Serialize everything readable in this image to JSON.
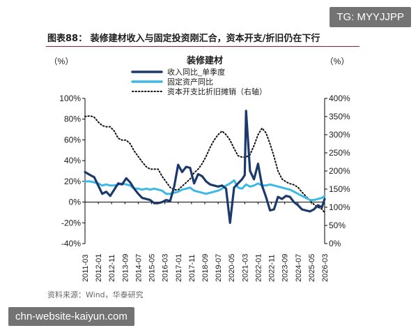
{
  "watermark_top": "TG: MYYJJPP",
  "watermark_bottom": "chn-website-kaiyun.com",
  "figure_title": "图表88： 装修建材收入与固定投资刚汇合，资本开支/折旧仍在下行",
  "source": "资料来源：Wind，华泰研究",
  "chart_data": {
    "type": "line",
    "title": "装修建材",
    "left_unit": "（%）",
    "right_unit": "（%）",
    "ylim_left": [
      -40,
      100
    ],
    "ylim_right": [
      0,
      400
    ],
    "yticks_left": [
      "100%",
      "80%",
      "60%",
      "40%",
      "20%",
      "0%",
      "-20%",
      "-40%"
    ],
    "yticks_right": [
      "400%",
      "350%",
      "300%",
      "250%",
      "200%",
      "150%",
      "100%",
      "50%",
      "0%"
    ],
    "xticks": [
      "2011-03",
      "2012-01",
      "2012-11",
      "2013-09",
      "2014-07",
      "2015-05",
      "2016-03",
      "2017-01",
      "2017-11",
      "2018-09",
      "2019-07",
      "2020-05",
      "2021-03",
      "2022-01",
      "2022-11",
      "2023-09",
      "2024-07",
      "2025-05",
      "2026-03"
    ],
    "x_start": 2011.17,
    "x_end": 2026.17,
    "colors": {
      "revenue": "#1b3a6b",
      "fixed_asset": "#3bb8e6",
      "capex": "#111111"
    },
    "series": [
      {
        "name": "收入同比_单季度",
        "axis": "left",
        "style": "solid",
        "x": [
          2011.17,
          2011.5,
          2011.75,
          2012.0,
          2012.25,
          2012.5,
          2012.75,
          2013.0,
          2013.25,
          2013.5,
          2013.75,
          2014.0,
          2014.25,
          2014.5,
          2014.75,
          2015.0,
          2015.25,
          2015.5,
          2015.75,
          2016.0,
          2016.25,
          2016.5,
          2016.75,
          2017.0,
          2017.25,
          2017.5,
          2017.75,
          2018.0,
          2018.25,
          2018.5,
          2018.75,
          2019.0,
          2019.25,
          2019.5,
          2019.75,
          2020.0,
          2020.25,
          2020.5,
          2020.75,
          2021.0,
          2021.17,
          2021.25,
          2021.5,
          2021.75,
          2022.0,
          2022.25,
          2022.5,
          2022.75,
          2023.0,
          2023.25,
          2023.5,
          2023.75,
          2024.0,
          2024.25,
          2024.5,
          2024.75,
          2025.0,
          2025.25,
          2025.5,
          2025.75,
          2026.0,
          2026.17
        ],
        "values": [
          29,
          26,
          24,
          16,
          8,
          10,
          6,
          12,
          18,
          17,
          23,
          19,
          13,
          8,
          4,
          3,
          2,
          -1,
          -1,
          0,
          2,
          1,
          15,
          36,
          29,
          34,
          33,
          18,
          27,
          25,
          20,
          17,
          16,
          15,
          16,
          13,
          -20,
          14,
          18,
          22,
          26,
          88,
          30,
          22,
          37,
          16,
          5,
          -8,
          -7,
          5,
          3,
          6,
          5,
          0,
          -3,
          -7,
          -8,
          -9,
          -7,
          -3,
          -5,
          3
        ]
      },
      {
        "name": "固定资产同比",
        "axis": "left",
        "style": "solid",
        "x": [
          2011.17,
          2011.5,
          2011.75,
          2012.0,
          2012.25,
          2012.5,
          2012.75,
          2013.0,
          2013.25,
          2013.5,
          2013.75,
          2014.0,
          2014.25,
          2014.5,
          2014.75,
          2015.0,
          2015.25,
          2015.5,
          2015.75,
          2016.0,
          2016.25,
          2016.5,
          2016.75,
          2017.0,
          2017.25,
          2017.5,
          2017.75,
          2018.0,
          2018.25,
          2018.5,
          2018.75,
          2019.0,
          2019.25,
          2019.5,
          2019.75,
          2020.0,
          2020.25,
          2020.5,
          2020.75,
          2021.0,
          2021.25,
          2021.5,
          2021.75,
          2022.0,
          2022.25,
          2022.5,
          2022.75,
          2023.0,
          2023.25,
          2023.5,
          2023.75,
          2024.0,
          2024.25,
          2024.5,
          2024.75,
          2025.0,
          2025.25,
          2025.5,
          2025.75,
          2026.0,
          2026.17
        ],
        "values": [
          20,
          20,
          19,
          18,
          16,
          17,
          16,
          16,
          17,
          18,
          17,
          16,
          13,
          13,
          12,
          13,
          12,
          13,
          12,
          11,
          8,
          8,
          9,
          10,
          12,
          13,
          14,
          11,
          10,
          9,
          8,
          9,
          10,
          11,
          13,
          16,
          18,
          21,
          14,
          13,
          17,
          15,
          16,
          18,
          16,
          16,
          17,
          16,
          15,
          14,
          13,
          12,
          10,
          8,
          6,
          4,
          2,
          2,
          3,
          4,
          6
        ]
      },
      {
        "name": "资本开支比折旧摊销（右轴）",
        "axis": "right",
        "style": "dotted",
        "x": [
          2011.17,
          2011.5,
          2011.75,
          2012.0,
          2012.25,
          2012.5,
          2012.75,
          2013.0,
          2013.25,
          2013.5,
          2013.75,
          2014.0,
          2014.25,
          2014.5,
          2014.75,
          2015.0,
          2015.25,
          2015.5,
          2015.75,
          2016.0,
          2016.25,
          2016.5,
          2016.75,
          2017.0,
          2017.25,
          2017.5,
          2017.75,
          2018.0,
          2018.25,
          2018.5,
          2018.75,
          2019.0,
          2019.25,
          2019.5,
          2019.75,
          2020.0,
          2020.25,
          2020.5,
          2020.75,
          2021.0,
          2021.25,
          2021.5,
          2021.75,
          2022.0,
          2022.25,
          2022.5,
          2022.75,
          2023.0,
          2023.25,
          2023.5,
          2023.75,
          2024.0,
          2024.25,
          2024.5,
          2024.75,
          2025.0,
          2025.25,
          2025.5,
          2025.75,
          2026.0,
          2026.17
        ],
        "values": [
          350,
          352,
          348,
          335,
          325,
          322,
          322,
          310,
          290,
          285,
          285,
          275,
          255,
          240,
          225,
          212,
          205,
          205,
          205,
          185,
          170,
          155,
          148,
          148,
          158,
          168,
          178,
          195,
          205,
          220,
          240,
          265,
          285,
          300,
          310,
          300,
          285,
          262,
          242,
          238,
          238,
          245,
          270,
          300,
          318,
          305,
          275,
          240,
          200,
          178,
          170,
          165,
          162,
          155,
          142,
          130,
          118,
          108,
          100,
          95,
          85
        ]
      }
    ]
  }
}
